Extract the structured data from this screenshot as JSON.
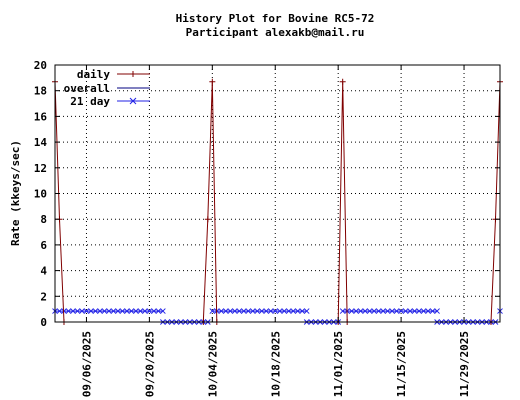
{
  "header": {
    "title_line1": "History Plot for Bovine RC5-72",
    "title_line2": "Participant alexakb@mail.ru"
  },
  "colors": {
    "daily": "#800000",
    "overall": "#000080",
    "21day": "#2222e6",
    "grid": "#000000",
    "frame": "#000000"
  },
  "chart_data": {
    "type": "line",
    "title": "History Plot for Bovine RC5-72",
    "subtitle": "Participant alexakb@mail.ru",
    "xlabel": "",
    "ylabel": "Rate (kkeys/sec)",
    "x_type": "date",
    "xlim": [
      "2025-08-30",
      "2025-12-07"
    ],
    "ylim": [
      0,
      20
    ],
    "y_ticks": [
      0,
      2,
      4,
      6,
      8,
      10,
      12,
      14,
      16,
      18,
      20
    ],
    "x_ticks": [
      "2025-09-06",
      "2025-09-20",
      "2025-10-04",
      "2025-10-18",
      "2025-11-01",
      "2025-11-15",
      "2025-11-29"
    ],
    "x_tick_labels": [
      "09/06/2025",
      "09/20/2025",
      "10/04/2025",
      "10/18/2025",
      "11/01/2025",
      "11/15/2025",
      "11/29/2025"
    ],
    "grid": true,
    "legend_position": "top-left",
    "series": [
      {
        "name": "daily",
        "style": "line-with-plus-markers",
        "points": [
          [
            "2025-08-30",
            18.7
          ],
          [
            "2025-08-31",
            8.0
          ],
          [
            "2025-09-01",
            0.0
          ],
          [
            "2025-10-02",
            0.0
          ],
          [
            "2025-10-03",
            8.0
          ],
          [
            "2025-10-04",
            18.7
          ],
          [
            "2025-10-05",
            0.0
          ],
          [
            "2025-11-01",
            0.0
          ],
          [
            "2025-11-02",
            18.7
          ],
          [
            "2025-11-03",
            0.0
          ],
          [
            "2025-12-05",
            0.0
          ],
          [
            "2025-12-06",
            8.0
          ],
          [
            "2025-12-07",
            18.7
          ]
        ]
      },
      {
        "name": "overall",
        "style": "line",
        "points": []
      },
      {
        "name": "21 day",
        "style": "line-with-x-markers",
        "segments": [
          {
            "from": "2025-08-30",
            "to": "2025-09-23",
            "value": 0.85
          },
          {
            "from": "2025-09-23",
            "to": "2025-10-03",
            "value": 0.0
          },
          {
            "from": "2025-10-04",
            "to": "2025-10-25",
            "value": 0.85
          },
          {
            "from": "2025-10-25",
            "to": "2025-11-01",
            "value": 0.0
          },
          {
            "from": "2025-11-02",
            "to": "2025-11-23",
            "value": 0.85
          },
          {
            "from": "2025-11-23",
            "to": "2025-12-06",
            "value": 0.0
          },
          {
            "from": "2025-12-07",
            "to": "2025-12-07",
            "value": 0.85
          }
        ]
      }
    ]
  }
}
